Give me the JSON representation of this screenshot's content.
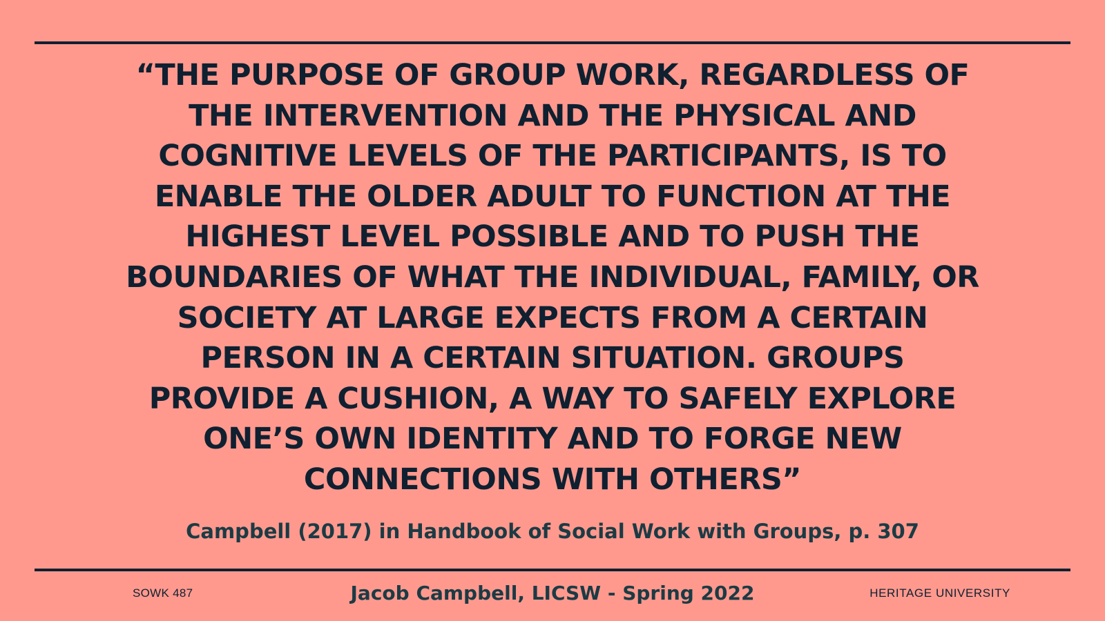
{
  "colors": {
    "background": "#FF998E",
    "text": "#0F2030",
    "footer_accent": "#1C3B44",
    "rule": "#0F2030"
  },
  "quote": {
    "lines": [
      "“THE PURPOSE OF GROUP WORK, REGARDLESS OF",
      "THE INTERVENTION AND THE PHYSICAL AND",
      "COGNITIVE LEVELS OF THE PARTICIPANTS, IS TO",
      "ENABLE THE OLDER ADULT TO FUNCTION AT THE",
      "HIGHEST LEVEL POSSIBLE AND TO PUSH THE",
      "BOUNDARIES OF WHAT THE INDIVIDUAL, FAMILY, OR",
      "SOCIETY AT LARGE EXPECTS FROM A CERTAIN",
      "PERSON IN A CERTAIN SITUATION. GROUPS",
      "PROVIDE A CUSHION, A WAY TO SAFELY EXPLORE",
      "ONE’S OWN IDENTITY AND TO FORGE NEW",
      "CONNECTIONS WITH OTHERS”"
    ]
  },
  "citation": "Campbell (2017) in Handbook of Social Work with Groups, p. 307",
  "footer": {
    "course": "SOWK 487",
    "presenter": "Jacob Campbell, LICSW - Spring 2022",
    "institution": "HERITAGE UNIVERSITY"
  }
}
